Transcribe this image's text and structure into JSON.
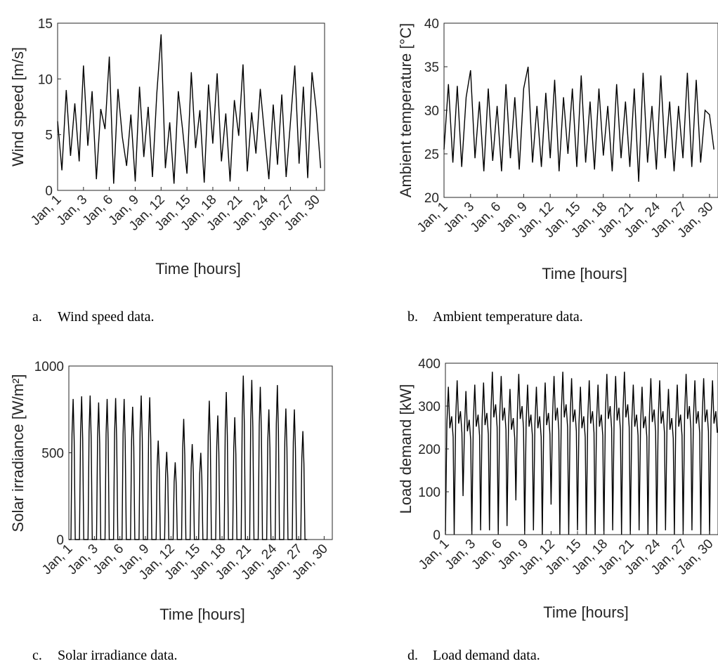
{
  "captions": {
    "a": {
      "letter": "a.",
      "text": "Wind speed data."
    },
    "b": {
      "letter": "b.",
      "text": "Ambient temperature data."
    },
    "c": {
      "letter": "c.",
      "text": "Solar irradiance data."
    },
    "d": {
      "letter": "d.",
      "text": "Load demand data."
    }
  },
  "chart_data": [
    {
      "id": "wind",
      "type": "line",
      "xlabel": "Time [hours]",
      "ylabel": "Wind speed [m/s]",
      "ylim": [
        0,
        15
      ],
      "yticks": [
        0,
        5,
        10,
        15
      ],
      "xlim": [
        1,
        744
      ],
      "xtick_positions": [
        1,
        73,
        145,
        217,
        289,
        361,
        433,
        505,
        577,
        649,
        721
      ],
      "xtick_labels": [
        "Jan, 1",
        "Jan, 3",
        "Jan, 6",
        "Jan, 9",
        "Jan, 12",
        "Jan, 15",
        "Jan, 18",
        "Jan, 21",
        "Jan, 24",
        "Jan, 27",
        "Jan, 30"
      ],
      "grid": false,
      "color": "#000000",
      "x": [
        1,
        13,
        25,
        37,
        49,
        61,
        73,
        85,
        97,
        109,
        121,
        133,
        145,
        157,
        169,
        181,
        193,
        205,
        217,
        229,
        241,
        253,
        265,
        277,
        289,
        301,
        313,
        325,
        337,
        349,
        361,
        373,
        385,
        397,
        409,
        421,
        433,
        445,
        457,
        469,
        481,
        493,
        505,
        517,
        529,
        541,
        553,
        565,
        577,
        589,
        601,
        613,
        625,
        637,
        649,
        661,
        673,
        685,
        697,
        709,
        721,
        733
      ],
      "values": [
        6.2,
        1.8,
        9.0,
        3.1,
        7.8,
        2.6,
        11.2,
        4.0,
        8.9,
        1.0,
        7.3,
        5.5,
        12.0,
        0.6,
        9.1,
        4.8,
        2.2,
        6.8,
        0.8,
        9.3,
        3.0,
        7.5,
        1.2,
        8.7,
        14.0,
        2.0,
        6.1,
        0.6,
        8.9,
        5.4,
        1.5,
        10.6,
        3.8,
        7.2,
        0.7,
        9.5,
        4.2,
        10.5,
        2.6,
        6.9,
        0.8,
        8.1,
        4.9,
        11.3,
        1.7,
        7.0,
        3.3,
        9.1,
        5.0,
        1.0,
        7.7,
        2.3,
        8.6,
        1.2,
        6.1,
        11.2,
        2.4,
        9.3,
        1.1,
        10.6,
        7.2,
        2.0
      ]
    },
    {
      "id": "temperature",
      "type": "line",
      "xlabel": "Time [hours]",
      "ylabel": "Ambient temperature [°C]",
      "ylim": [
        20,
        40
      ],
      "yticks": [
        20,
        25,
        30,
        35,
        40
      ],
      "xlim": [
        1,
        744
      ],
      "xtick_positions": [
        1,
        73,
        145,
        217,
        289,
        361,
        433,
        505,
        577,
        649,
        721
      ],
      "xtick_labels": [
        "Jan, 1",
        "Jan, 3",
        "Jan, 6",
        "Jan, 9",
        "Jan, 12",
        "Jan, 15",
        "Jan, 18",
        "Jan, 21",
        "Jan, 24",
        "Jan, 27",
        "Jan, 30"
      ],
      "grid": false,
      "color": "#000000",
      "x": [
        1,
        13,
        25,
        37,
        49,
        61,
        73,
        85,
        97,
        109,
        121,
        133,
        145,
        157,
        169,
        181,
        193,
        205,
        217,
        229,
        241,
        253,
        265,
        277,
        289,
        301,
        313,
        325,
        337,
        349,
        361,
        373,
        385,
        397,
        409,
        421,
        433,
        445,
        457,
        469,
        481,
        493,
        505,
        517,
        529,
        541,
        553,
        565,
        577,
        589,
        601,
        613,
        625,
        637,
        649,
        661,
        673,
        685,
        697,
        709,
        721,
        733
      ],
      "values": [
        25.5,
        33.0,
        24.0,
        32.8,
        23.5,
        31.5,
        34.6,
        24.5,
        31.0,
        23.0,
        32.5,
        24.2,
        30.5,
        23.0,
        33.0,
        24.5,
        31.5,
        23.2,
        32.5,
        35.0,
        24.0,
        30.5,
        23.5,
        32.0,
        24.5,
        33.5,
        23.0,
        31.5,
        25.0,
        32.5,
        23.5,
        34.0,
        24.0,
        31.0,
        23.2,
        32.5,
        24.8,
        30.5,
        23.0,
        33.0,
        24.5,
        31.0,
        23.5,
        32.5,
        21.8,
        34.3,
        24.0,
        30.5,
        23.2,
        34.0,
        24.5,
        31.0,
        23.0,
        30.5,
        24.5,
        34.3,
        23.5,
        33.5,
        24.0,
        30.0,
        29.5,
        25.5
      ]
    },
    {
      "id": "solar",
      "type": "line",
      "xlabel": "Time [hours]",
      "ylabel": "Solar irradiance [W/m²]",
      "ylim": [
        0,
        1000
      ],
      "yticks": [
        0,
        500,
        1000
      ],
      "xlim": [
        1,
        744
      ],
      "xtick_positions": [
        1,
        73,
        145,
        217,
        289,
        361,
        433,
        505,
        577,
        649,
        721
      ],
      "xtick_labels": [
        "Jan, 1",
        "Jan, 3",
        "Jan, 6",
        "Jan, 9",
        "Jan, 12",
        "Jan, 15",
        "Jan, 18",
        "Jan, 21",
        "Jan, 24",
        "Jan, 27",
        "Jan, 30"
      ],
      "grid": false,
      "color": "#000000",
      "daily_peaks": [
        810,
        825,
        830,
        790,
        810,
        815,
        810,
        765,
        830,
        820,
        570,
        505,
        445,
        695,
        550,
        500,
        800,
        715,
        850,
        705,
        945,
        920,
        880,
        750,
        890,
        755,
        750,
        625
      ]
    },
    {
      "id": "load",
      "type": "line",
      "xlabel": "Time [hours]",
      "ylabel": "Load demand [kW]",
      "ylim": [
        0,
        400
      ],
      "yticks": [
        0,
        100,
        200,
        300,
        400
      ],
      "xlim": [
        1,
        744
      ],
      "xtick_positions": [
        1,
        73,
        145,
        217,
        289,
        361,
        433,
        505,
        577,
        649,
        721
      ],
      "xtick_labels": [
        "Jan, 1",
        "Jan, 3",
        "Jan, 6",
        "Jan, 9",
        "Jan, 12",
        "Jan, 15",
        "Jan, 18",
        "Jan, 21",
        "Jan, 24",
        "Jan, 27",
        "Jan, 30"
      ],
      "grid": false,
      "color": "#000000",
      "daily_peaks": [
        345,
        360,
        335,
        350,
        355,
        380,
        370,
        340,
        375,
        350,
        345,
        355,
        370,
        380,
        365,
        345,
        360,
        350,
        375,
        370,
        380,
        350,
        345,
        365,
        360,
        340,
        350,
        375,
        360,
        365,
        360
      ],
      "daily_mins": [
        0,
        0,
        90,
        0,
        10,
        10,
        0,
        20,
        80,
        0,
        10,
        0,
        70,
        0,
        0,
        10,
        0,
        0,
        0,
        10,
        0,
        0,
        10,
        0,
        0,
        10,
        0,
        0,
        10,
        0,
        0
      ]
    }
  ]
}
